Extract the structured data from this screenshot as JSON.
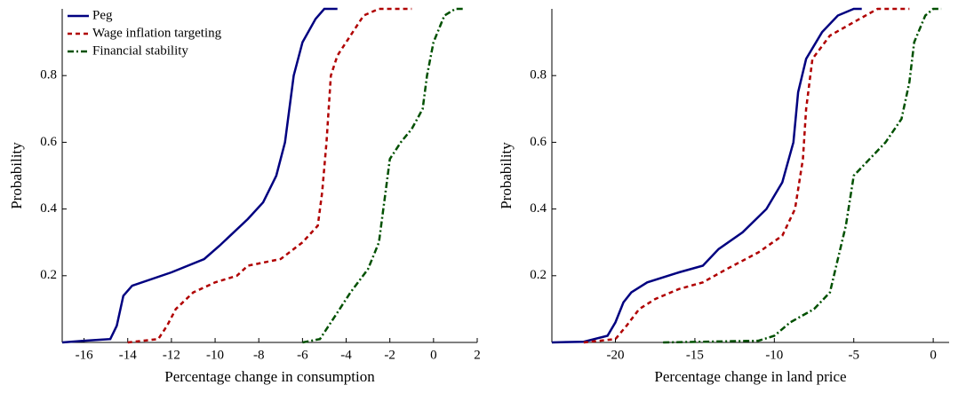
{
  "chart_data": [
    {
      "type": "line",
      "xlabel": "Percentage change in consumption",
      "ylabel": "Probability",
      "xlim": [
        -17,
        2
      ],
      "ylim": [
        0,
        1
      ],
      "xticks": [
        -16,
        -14,
        -12,
        -10,
        -8,
        -6,
        -4,
        -2,
        0,
        2
      ],
      "yticks": [
        0.2,
        0.4,
        0.6,
        0.8
      ],
      "legend": "upper left",
      "series": [
        {
          "name": "Peg",
          "color": "#000080",
          "style": "solid",
          "x": [
            -17,
            -16,
            -14.8,
            -14.5,
            -14.2,
            -13.8,
            -12,
            -10.5,
            -9.8,
            -8.5,
            -7.8,
            -7.2,
            -6.8,
            -6.6,
            -6.4,
            -6,
            -5.4,
            -5,
            -4.4
          ],
          "values": [
            0,
            0.005,
            0.01,
            0.05,
            0.14,
            0.17,
            0.21,
            0.25,
            0.29,
            0.37,
            0.42,
            0.5,
            0.6,
            0.7,
            0.8,
            0.9,
            0.97,
            1.0,
            1.0
          ]
        },
        {
          "name": "Wage inflation targeting",
          "color": "#b00000",
          "style": "dashed",
          "x": [
            -14,
            -12.6,
            -12.2,
            -11.8,
            -11,
            -10,
            -9,
            -8.5,
            -7,
            -6,
            -5.3,
            -5.1,
            -4.9,
            -4.7,
            -4.4,
            -3.8,
            -3.2,
            -2.5,
            -1
          ],
          "values": [
            0,
            0.01,
            0.05,
            0.1,
            0.15,
            0.18,
            0.2,
            0.23,
            0.25,
            0.3,
            0.35,
            0.45,
            0.6,
            0.8,
            0.86,
            0.92,
            0.98,
            1.0,
            1.0
          ]
        },
        {
          "name": "Financial stability",
          "color": "#005000",
          "style": "dashdot",
          "x": [
            -6,
            -5.2,
            -4.8,
            -4.3,
            -3.8,
            -3,
            -2.5,
            -2.2,
            -2,
            -1.5,
            -1,
            -0.5,
            -0.3,
            0,
            0.5,
            1,
            1.4
          ],
          "values": [
            0,
            0.01,
            0.05,
            0.1,
            0.15,
            0.22,
            0.3,
            0.45,
            0.55,
            0.6,
            0.64,
            0.7,
            0.8,
            0.9,
            0.98,
            1.0,
            1.0
          ]
        }
      ]
    },
    {
      "type": "line",
      "xlabel": "Percentage change in land price",
      "ylabel": "Probability",
      "xlim": [
        -24,
        1
      ],
      "ylim": [
        0,
        1
      ],
      "xticks": [
        -20,
        -15,
        -10,
        -5,
        0
      ],
      "yticks": [
        0.2,
        0.4,
        0.6,
        0.8
      ],
      "series": [
        {
          "color": "#000080",
          "style": "solid",
          "x": [
            -24,
            -22,
            -20.5,
            -20,
            -19.5,
            -19,
            -18,
            -16,
            -14.5,
            -13.5,
            -12,
            -10.5,
            -9.5,
            -8.8,
            -8.5,
            -8,
            -7,
            -6,
            -5,
            -4.5
          ],
          "values": [
            0,
            0.002,
            0.02,
            0.06,
            0.12,
            0.15,
            0.18,
            0.21,
            0.23,
            0.28,
            0.33,
            0.4,
            0.48,
            0.6,
            0.75,
            0.85,
            0.93,
            0.98,
            1.0,
            1.0
          ]
        },
        {
          "color": "#b00000",
          "style": "dashed",
          "x": [
            -22,
            -20,
            -19.3,
            -18.5,
            -17.5,
            -16,
            -14.5,
            -13,
            -11,
            -9.5,
            -8.7,
            -8.2,
            -8,
            -7.6,
            -6.5,
            -5,
            -3.5,
            -1.5
          ],
          "values": [
            0,
            0.01,
            0.05,
            0.1,
            0.13,
            0.16,
            0.18,
            0.22,
            0.27,
            0.32,
            0.4,
            0.55,
            0.7,
            0.85,
            0.92,
            0.96,
            1.0,
            1.0
          ]
        },
        {
          "color": "#005000",
          "style": "dashdot",
          "x": [
            -17,
            -11,
            -10,
            -9,
            -7.5,
            -6.5,
            -6,
            -5.5,
            -5,
            -4,
            -3,
            -2,
            -1.5,
            -1.2,
            -0.5,
            0,
            0.5
          ],
          "values": [
            0,
            0.005,
            0.02,
            0.06,
            0.1,
            0.15,
            0.25,
            0.35,
            0.5,
            0.55,
            0.6,
            0.67,
            0.78,
            0.9,
            0.98,
            1.0,
            1.0
          ]
        }
      ]
    }
  ]
}
